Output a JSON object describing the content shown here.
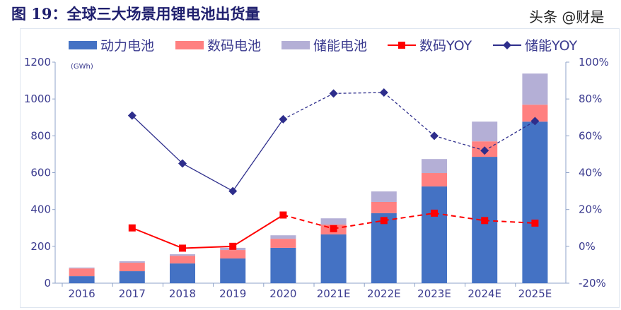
{
  "title": "图 19：全球三大场景用锂电池出货量",
  "watermark": "头条 @财是",
  "chart_data": {
    "type": "bar",
    "unit_label": "(GWh)",
    "categories": [
      "2016",
      "2017",
      "2018",
      "2019",
      "2020",
      "2021E",
      "2022E",
      "2023E",
      "2024E",
      "2025E"
    ],
    "series": [
      {
        "name": "动力电池",
        "type": "bar",
        "axis": "left",
        "color": "#4472c4",
        "values": [
          38,
          65,
          107,
          134,
          192,
          265,
          380,
          525,
          686,
          877
        ]
      },
      {
        "name": "数码电池",
        "type": "bar",
        "axis": "left",
        "color": "#ff8080",
        "values": [
          42,
          46,
          42,
          46,
          49,
          53,
          61,
          73,
          84,
          92
        ]
      },
      {
        "name": "储能电池",
        "type": "bar",
        "axis": "left",
        "color": "#b4afd6",
        "values": [
          5,
          8,
          8,
          12,
          19,
          34,
          57,
          76,
          107,
          169
        ]
      },
      {
        "name": "数码YOY",
        "type": "line",
        "axis": "right",
        "color": "#ff0000",
        "marker": "square",
        "values": [
          null,
          10,
          -1,
          0,
          17,
          9.6,
          14,
          18,
          14,
          12.6
        ]
      },
      {
        "name": "储能YOY",
        "type": "line",
        "axis": "right",
        "color": "#2e2e8c",
        "marker": "diamond",
        "values": [
          null,
          71,
          45,
          30,
          69,
          83,
          83.5,
          60,
          52,
          68
        ]
      }
    ],
    "left_axis": {
      "ylim": [
        0,
        1200
      ],
      "ticks": [
        "0",
        "200",
        "400",
        "600",
        "800",
        "1000",
        "1200"
      ]
    },
    "right_axis": {
      "ylim": [
        -20,
        100
      ],
      "ticks": [
        "-20%",
        "0%",
        "20%",
        "40%",
        "60%",
        "80%",
        "100%"
      ]
    },
    "legend": "top"
  }
}
